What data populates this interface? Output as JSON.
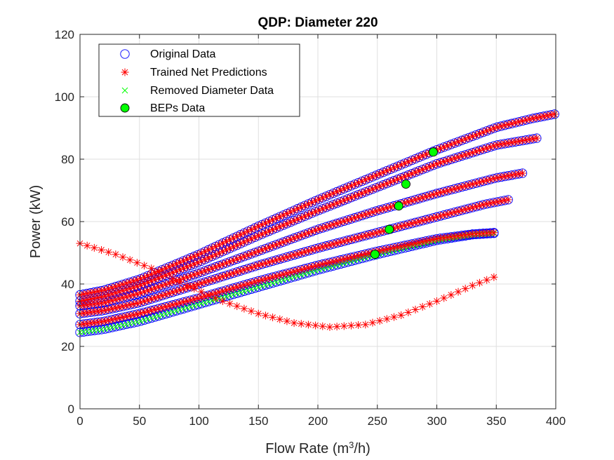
{
  "chart_data": {
    "type": "scatter",
    "title": "QDP: Diameter 220",
    "xlabel": {
      "pre": "Flow Rate (m",
      "sup": "3",
      "post": "/h)"
    },
    "ylabel": "Power (kW)",
    "xlim": [
      0,
      400
    ],
    "ylim": [
      0,
      120
    ],
    "xticks": [
      "0",
      "50",
      "100",
      "150",
      "200",
      "250",
      "300",
      "350",
      "400"
    ],
    "yticks": [
      "0",
      "20",
      "40",
      "60",
      "80",
      "100",
      "120"
    ],
    "grid": true,
    "legend_position": "top-left",
    "legend": [
      {
        "label": "Original Data",
        "marker": "circle",
        "color": "#0000ff"
      },
      {
        "label": "Trained Net Predictions",
        "marker": "asterisk",
        "color": "#ff0000"
      },
      {
        "label": "Removed Diameter Data",
        "marker": "x",
        "color": "#00ff00"
      },
      {
        "label": "BEPs Data",
        "marker": "filled-circle",
        "color": "#00ff00"
      }
    ],
    "series": [
      {
        "name": "Original Data",
        "curves": [
          {
            "x": [
              0,
              20,
              50,
              100,
              150,
              200,
              250,
              300,
              350,
              380,
              400
            ],
            "y": [
              36.5,
              38,
              41.5,
              49.5,
              58.5,
              67,
              75,
              83,
              90.2,
              93,
              94.5
            ]
          },
          {
            "x": [
              0,
              20,
              50,
              100,
              150,
              200,
              250,
              300,
              350,
              385
            ],
            "y": [
              34.5,
              36,
              39.5,
              47,
              55.5,
              63.5,
              71,
              78.5,
              84.5,
              86.8
            ]
          },
          {
            "x": [
              0,
              20,
              50,
              100,
              150,
              200,
              250,
              300,
              350,
              372
            ],
            "y": [
              33,
              34,
              37,
              43.5,
              50.5,
              57.5,
              63.5,
              69,
              74,
              75.5
            ]
          },
          {
            "x": [
              0,
              20,
              50,
              100,
              150,
              200,
              250,
              300,
              340,
              360
            ],
            "y": [
              30.5,
              31.5,
              34,
              40,
              46,
              51.5,
              56.5,
              61.5,
              65.5,
              67
            ]
          },
          {
            "x": [
              0,
              20,
              50,
              100,
              150,
              200,
              250,
              300,
              330,
              350
            ],
            "y": [
              27,
              28,
              30.5,
              35.5,
              41,
              46,
              50.5,
              54.5,
              56,
              56.5
            ]
          },
          {
            "x": [
              0,
              20,
              50,
              100,
              150,
              200,
              250,
              300,
              330,
              350
            ],
            "y": [
              24.5,
              25.5,
              28,
              33.5,
              39,
              44.5,
              49.5,
              54,
              55.8,
              56.3
            ]
          }
        ]
      },
      {
        "name": "Trained Net Predictions",
        "curves": [
          {
            "x": [
              0,
              20,
              50,
              100,
              150,
              200,
              250,
              300,
              350,
              380,
              400
            ],
            "y": [
              36.5,
              38,
              41.5,
              49.5,
              58.5,
              67,
              75,
              83,
              90.2,
              93,
              94.5
            ]
          },
          {
            "x": [
              0,
              20,
              50,
              100,
              150,
              200,
              250,
              300,
              350,
              385
            ],
            "y": [
              34.5,
              36,
              39.5,
              47,
              55.5,
              63.5,
              71,
              78.5,
              84.5,
              86.8
            ]
          },
          {
            "x": [
              0,
              20,
              50,
              100,
              150,
              200,
              250,
              300,
              350,
              372
            ],
            "y": [
              33,
              34,
              37,
              43.5,
              50.5,
              57.5,
              63.5,
              69,
              74,
              75.5
            ]
          },
          {
            "x": [
              0,
              20,
              50,
              100,
              150,
              200,
              250,
              300,
              340,
              360
            ],
            "y": [
              30.5,
              31.5,
              34,
              40,
              46,
              51.5,
              56.5,
              61.5,
              65.5,
              67
            ]
          },
          {
            "x": [
              0,
              20,
              50,
              100,
              150,
              200,
              250,
              300,
              330,
              350
            ],
            "y": [
              27,
              28,
              30.5,
              35.5,
              41,
              46,
              50.5,
              54.5,
              56,
              56.5
            ]
          },
          {
            "x": [
              0,
              30,
              60,
              90,
              120,
              150,
              180,
              210,
              240,
              270,
              300,
              330,
              350
            ],
            "y": [
              53,
              49.5,
              45,
              39.5,
              34.5,
              30.5,
              27.5,
              26.2,
              27,
              30,
              34.5,
              39.5,
              42.5
            ]
          }
        ]
      },
      {
        "name": "Removed Diameter Data",
        "curves": [
          {
            "x": [
              0,
              20,
              50,
              100,
              150,
              200,
              250,
              300,
              330,
              350
            ],
            "y": [
              24.5,
              25.5,
              28,
              33.5,
              39,
              44.5,
              49.5,
              54,
              55.8,
              56.3
            ]
          }
        ]
      },
      {
        "name": "BEPs Data",
        "points": [
          {
            "x": 297,
            "y": 82.3
          },
          {
            "x": 274,
            "y": 72
          },
          {
            "x": 268,
            "y": 65
          },
          {
            "x": 260,
            "y": 57.5
          },
          {
            "x": 248,
            "y": 49.5
          }
        ]
      }
    ]
  }
}
